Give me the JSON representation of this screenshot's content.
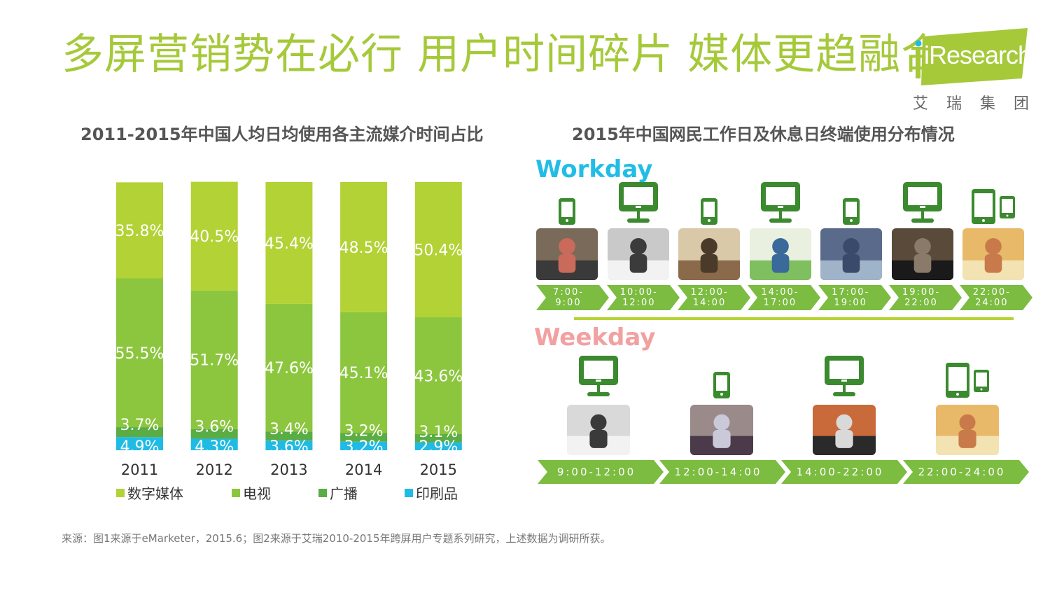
{
  "header": {
    "title": "多屏营销势在必行 用户时间碎片 媒体更趋融合",
    "logo_text": "iResearch",
    "logo_sub": [
      "艾",
      "瑞",
      "集",
      "团"
    ]
  },
  "left_chart": {
    "title": "2011-2015年中国人均日均使用各主流媒介时间占比"
  },
  "chart_data": {
    "type": "bar",
    "stacked": true,
    "categories": [
      "2011",
      "2012",
      "2013",
      "2014",
      "2015"
    ],
    "series": [
      {
        "name": "数字媒体",
        "values": [
          35.8,
          40.5,
          45.4,
          48.5,
          50.4
        ],
        "labels": [
          "35.8%",
          "40.5%",
          "45.4%",
          "48.5%",
          "50.4%"
        ],
        "color": "#b2d235"
      },
      {
        "name": "电视",
        "values": [
          55.5,
          51.7,
          47.6,
          45.1,
          43.6
        ],
        "labels": [
          "55.5%",
          "51.7%",
          "47.6%",
          "45.1%",
          "43.6%"
        ],
        "color": "#8cc63f"
      },
      {
        "name": "广播",
        "values": [
          3.7,
          3.6,
          3.4,
          3.2,
          3.1
        ],
        "labels": [
          "3.7%",
          "3.6%",
          "3.4%",
          "3.2%",
          "3.1%"
        ],
        "color": "#5aac44"
      },
      {
        "name": "印刷品",
        "values": [
          4.9,
          4.3,
          3.6,
          3.2,
          2.9
        ],
        "labels": [
          "4.9%",
          "4.3%",
          "3.6%",
          "3.2%",
          "2.9%"
        ],
        "color": "#1fbbe5"
      }
    ],
    "ylim": [
      0,
      100
    ],
    "legend_position": "bottom"
  },
  "right_panel": {
    "title": "2015年中国网民工作日及休息日终端使用分布情况",
    "workday": {
      "label": "Workday",
      "slots": [
        {
          "device": "phone-icon",
          "lines": [
            "7:00-",
            "9:00"
          ]
        },
        {
          "device": "monitor-icon",
          "lines": [
            "10:00-",
            "12:00"
          ]
        },
        {
          "device": "phone-icon",
          "lines": [
            "12:00-",
            "14:00"
          ]
        },
        {
          "device": "monitor-icon",
          "lines": [
            "14:00-",
            "17:00"
          ]
        },
        {
          "device": "phone-icon",
          "lines": [
            "17:00-",
            "19:00"
          ]
        },
        {
          "device": "monitor-icon",
          "lines": [
            "19:00-",
            "22:00"
          ]
        },
        {
          "device": "tablet-phone-icon",
          "lines": [
            "22:00-",
            "24:00"
          ]
        }
      ]
    },
    "weekday": {
      "label": "Weekday",
      "slots": [
        {
          "device": "monitor-icon",
          "lines": [
            "9:00-12:00"
          ]
        },
        {
          "device": "phone-icon",
          "lines": [
            "12:00-14:00"
          ]
        },
        {
          "device": "monitor-icon",
          "lines": [
            "14:00-22:00"
          ]
        },
        {
          "device": "tablet-phone-icon",
          "lines": [
            "22:00-24:00"
          ]
        }
      ]
    },
    "colors": {
      "device": "#3b8a2f",
      "arrow": "#7cbc41",
      "divider": "#b6d334"
    }
  },
  "footer": {
    "source": "来源：图1来源于eMarketer，2015.6；图2来源于艾瑞2010-2015年跨屏用户专题系列研究，上述数据为调研所获。"
  }
}
